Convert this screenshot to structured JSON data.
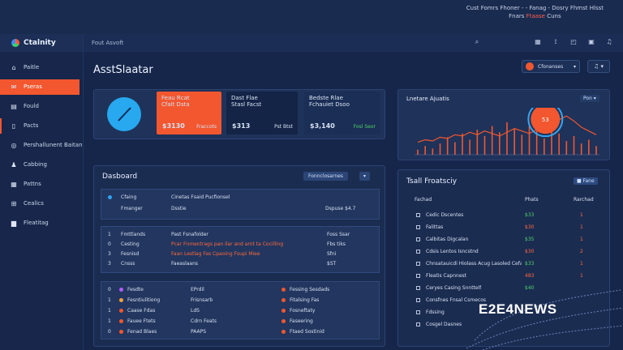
{
  "top_notice": {
    "line1": "Cust Fomrs Fhoner - - Fanag - Dosry Fhmst Hlsst",
    "line2_a": "Fnars",
    "line2_hl": "Ftaase",
    "line2_b": "Cuns"
  },
  "brand": {
    "name": "Ctalnity"
  },
  "header": {
    "search_label": "Fout Asvoft"
  },
  "sidebar": {
    "items": [
      {
        "label": "Paitle",
        "icon": "home-icon"
      },
      {
        "label": "Pseras",
        "icon": "envelope-icon"
      },
      {
        "label": "Fould",
        "icon": "chart-icon"
      },
      {
        "label": "Pacts",
        "icon": "device-icon"
      },
      {
        "label": "Pershallunent Baitan",
        "icon": "globe-icon"
      },
      {
        "label": "Cabbing",
        "icon": "users-icon"
      },
      {
        "label": "Pattns",
        "icon": "calendar-icon"
      },
      {
        "label": "Cealics",
        "icon": "grid-icon"
      },
      {
        "label": "Fleatitag",
        "icon": "folder-icon"
      }
    ]
  },
  "page": {
    "title": "AsstSlaatar"
  },
  "user": {
    "name": "Cfonanses"
  },
  "stats": {
    "cards": [
      {
        "title": "Feau Rcat",
        "sub": "Cfalt Dsta",
        "value": "$3130",
        "side": "Fraccots"
      },
      {
        "title": "Dast Flae",
        "sub": "Stasl Facst",
        "value": "$313",
        "side": "Pst Btst"
      },
      {
        "title": "Bedste Rlae",
        "sub": "Fchauiet Dsoo",
        "value": "$3,140",
        "side": "Fosl Seor"
      }
    ]
  },
  "analytics": {
    "title": "Lnetare Ajuatis",
    "filter": "Pon",
    "marker_value": "53"
  },
  "dashboard": {
    "title": "Dasboard",
    "button": "Fonnclosarnes",
    "top_row": {
      "c1": "Cfaing",
      "c2": "Cinetas Fsaid Pucfionsel",
      "c3": ""
    },
    "sub_row": {
      "c1": "Fmanger",
      "c2": "Dsstie",
      "c3": "Dspuse $4.7"
    },
    "table2": [
      {
        "n": "1",
        "a": "Fmttlands",
        "b": "Past Fsnafolder",
        "c": "Foss Ssar"
      },
      {
        "n": "0",
        "a": "Cesting",
        "b": "Pcar Fnmentrags pan ilar and arnt ta Cocilling",
        "c": "Fbs tiks"
      },
      {
        "n": "3",
        "a": "Fesnisd",
        "b": "Faan Lestlag Fas Cpaoing Fsupi Miee",
        "c": "Sfni"
      },
      {
        "n": "3",
        "a": "Cnsss",
        "b": "Faeaslaans",
        "c": "$ST"
      }
    ],
    "table3": [
      {
        "n": "0",
        "a": "Fesdte",
        "b": "EPrdil",
        "c": "Fessing Sesdads"
      },
      {
        "n": "1",
        "a": "Fesntiulitiong",
        "b": "Frisnsarb",
        "c": "Fitalsing Fas"
      },
      {
        "n": "1",
        "a": "Caase Fdas",
        "b": "LdS",
        "c": "Fosneftaty"
      },
      {
        "n": "1",
        "a": "Fauee Ftets",
        "b": "Cdrn Feats",
        "c": "Faseering"
      },
      {
        "n": "0",
        "a": "Fenad Blaes",
        "b": "PAAPS",
        "c": "Ftaed Sostinid"
      }
    ]
  },
  "inventory": {
    "title": "Tsall Froatsciy",
    "badge": "Fane",
    "headers": [
      "Fachad",
      "Phats",
      "Rarchad"
    ],
    "rows": [
      {
        "name": "Cedic Dscentes",
        "v": "$33",
        "q": "1"
      },
      {
        "name": "Falittas",
        "v": "$30",
        "q": "1"
      },
      {
        "name": "Calbitas Digcalan",
        "v": "$35",
        "q": "1"
      },
      {
        "name": "Cdsis Lentos Isncstnd",
        "v": "$30",
        "q": "2"
      },
      {
        "name": "Chnsatauicdi Hiolass Acug Lasoled Cefasnrsonnesitn",
        "v": "$33",
        "q": "1"
      },
      {
        "name": "Fleatis Capnnest",
        "v": "483",
        "q": "1"
      },
      {
        "name": "Ceryes Casing Snnttelf",
        "v": "$40",
        "q": ""
      },
      {
        "name": "Consfnes Fnsal Csmecos",
        "v": "",
        "q": ""
      },
      {
        "name": "Fdssing",
        "v": "",
        "q": ""
      },
      {
        "name": "Cosgel Dasnes",
        "v": "",
        "q": ""
      }
    ]
  },
  "watermark": "E2E4NEWS",
  "chart_data": {
    "type": "line",
    "title": "Lnetare Ajuatis",
    "series_bars": [
      4,
      7,
      5,
      9,
      14,
      10,
      17,
      12,
      20,
      15,
      23,
      18,
      26,
      21,
      16,
      24,
      19,
      13,
      22,
      17,
      11,
      15,
      9,
      12,
      7
    ],
    "series_line": [
      10,
      12,
      11,
      14,
      13,
      16,
      15,
      18,
      16,
      19,
      17,
      15,
      18,
      21,
      19,
      17,
      20,
      25,
      30,
      28,
      31,
      27,
      22,
      19,
      16
    ],
    "ylim": [
      0,
      35
    ],
    "grid": false
  }
}
